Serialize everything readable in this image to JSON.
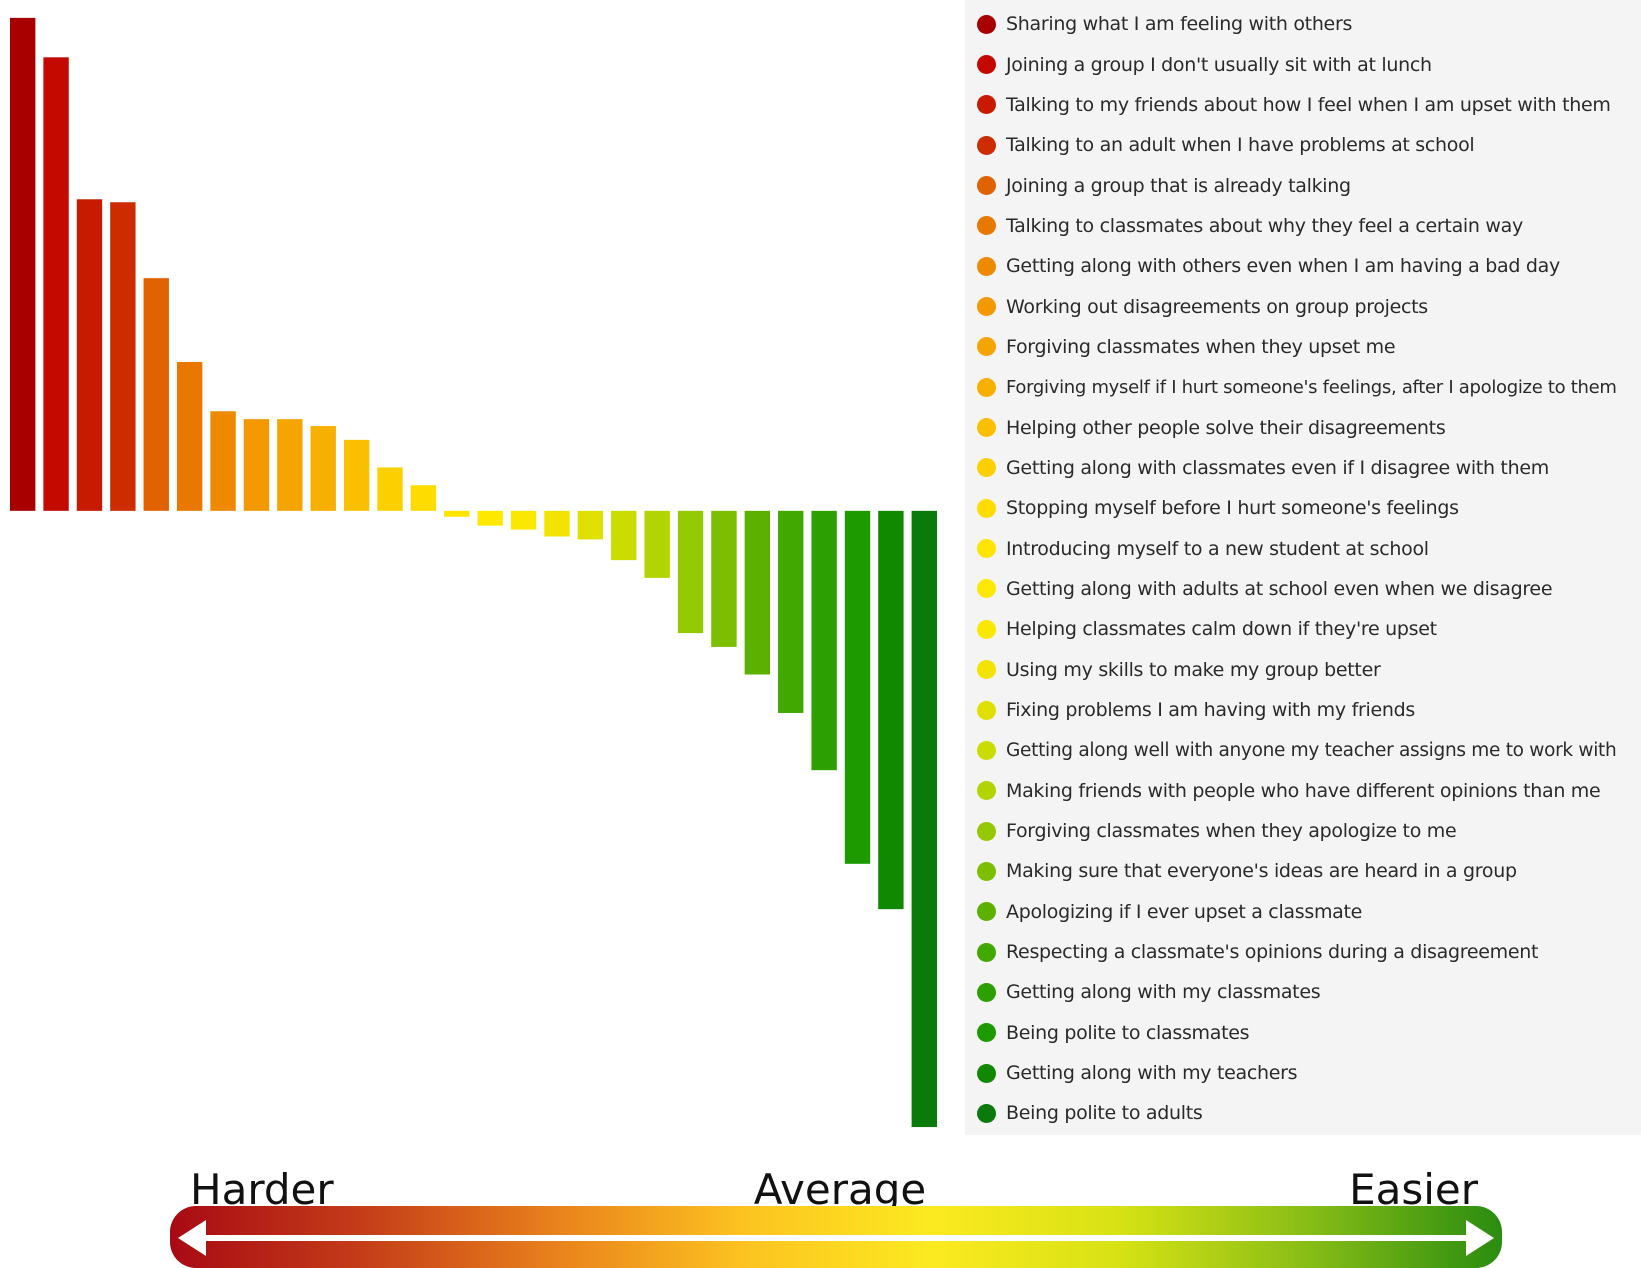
{
  "chart_data": {
    "type": "bar",
    "orientation": "vertical",
    "baseline": 0,
    "ylim": [
      -0.63,
      0.51
    ],
    "grid": false,
    "legend_placement": "right",
    "categories": [
      "Sharing what I am feeling with others",
      "Joining a group I don't usually sit with at lunch",
      "Talking to my friends about how I feel when I am upset with them",
      "Talking to an adult when I have problems at school",
      "Joining a group that is already talking",
      "Talking to classmates about why they feel a certain way",
      "Getting along with others even when I am having a bad day",
      "Working out disagreements on group projects",
      "Forgiving classmates when they upset me",
      "Forgiving myself if I hurt someone's feelings, after I apologize to them",
      "Helping other people solve their disagreements",
      "Getting along with classmates even if I disagree with them",
      "Stopping myself before I hurt someone's feelings",
      "Introducing myself to a new student at school",
      "Getting along with adults at school even when we disagree",
      "Helping classmates calm down if they're upset",
      "Using my skills to make my group better",
      "Fixing problems I am having with my friends",
      "Getting along well with anyone my teacher assigns me to work with",
      "Making friends with people who have different opinions than me",
      "Forgiving classmates when they apologize to me",
      "Making sure that everyone's ideas are heard in a group",
      "Apologizing if I ever upset a classmate",
      "Respecting a classmate's opinions during a disagreement",
      "Getting along with my classmates",
      "Being polite to classmates",
      "Getting along with my teachers",
      "Being polite to adults"
    ],
    "values": [
      0.5,
      0.46,
      0.316,
      0.313,
      0.236,
      0.151,
      0.101,
      0.093,
      0.093,
      0.086,
      0.072,
      0.044,
      0.026,
      -0.006,
      -0.015,
      -0.019,
      -0.026,
      -0.029,
      -0.05,
      -0.068,
      -0.124,
      -0.138,
      -0.166,
      -0.205,
      -0.263,
      -0.358,
      -0.404,
      -0.625
    ],
    "colors": [
      "#a80000",
      "#c40a00",
      "#c81a00",
      "#cc2c00",
      "#e06200",
      "#e87800",
      "#ee8900",
      "#f49800",
      "#f6a500",
      "#f8b000",
      "#fac000",
      "#fcd000",
      "#fedc00",
      "#ffe400",
      "#ffe800",
      "#fbe800",
      "#f2e400",
      "#e0e000",
      "#cbdc00",
      "#b2d400",
      "#94c800",
      "#7cbe00",
      "#5cb000",
      "#40a800",
      "#2ca000",
      "#1c9a00",
      "#108800",
      "#0a7a0a"
    ]
  },
  "scale": {
    "left_label": "Harder",
    "center_label": "Average",
    "right_label": "Easier",
    "gradient_colors": [
      "#a80a14",
      "#c43c18",
      "#e8801c",
      "#fcc220",
      "#fcea20",
      "#d6e214",
      "#86bc16",
      "#2a8c10"
    ]
  }
}
